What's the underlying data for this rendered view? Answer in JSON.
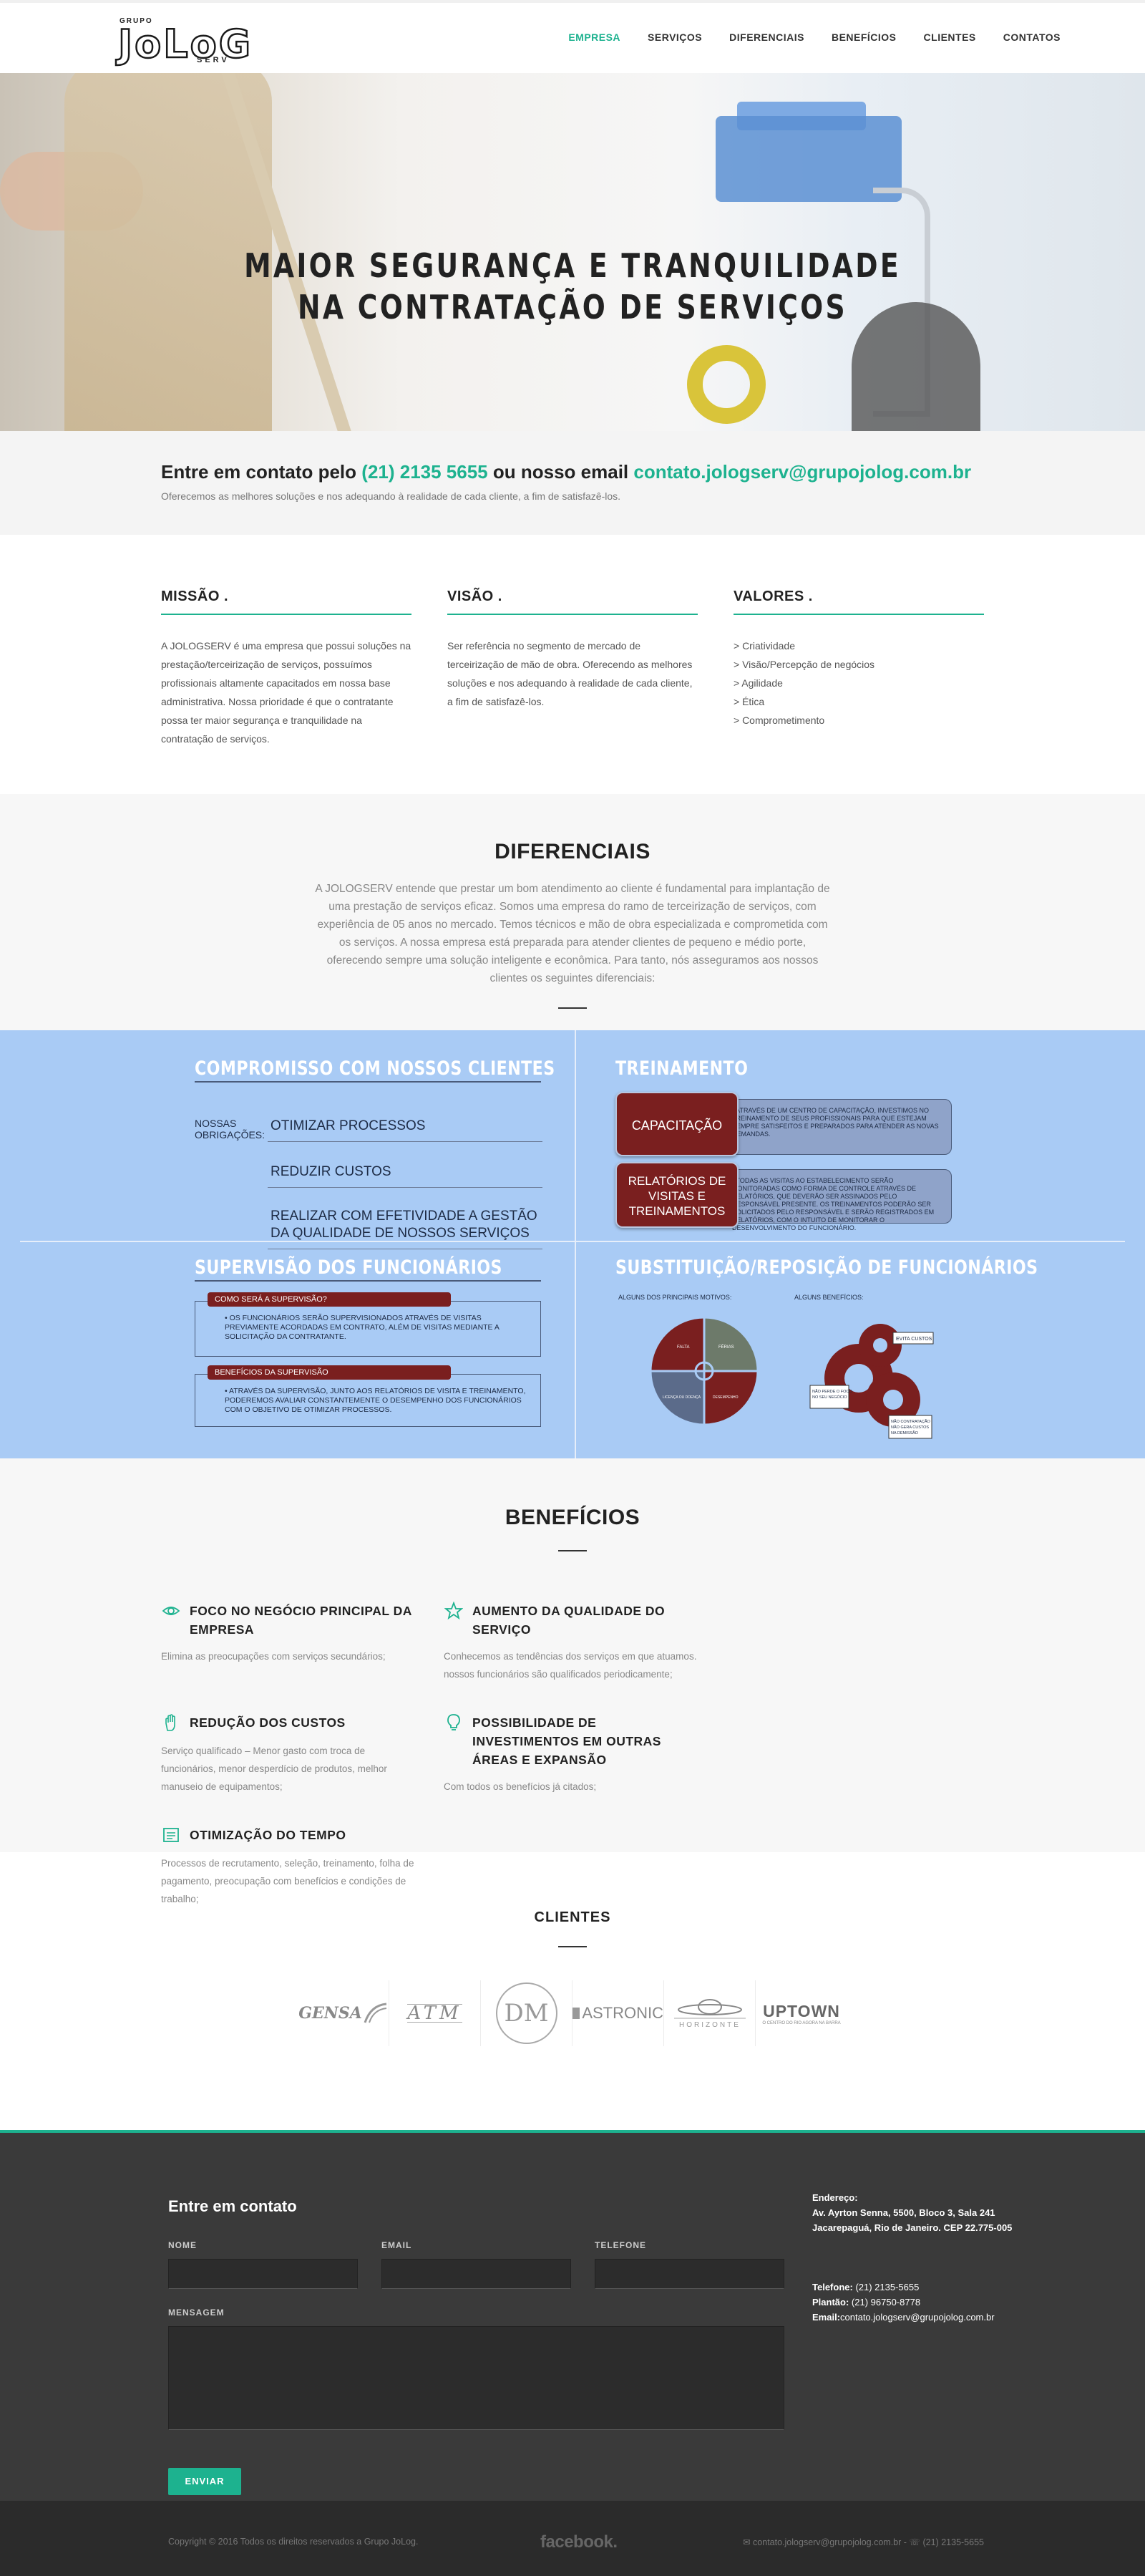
{
  "logo": {
    "grupo": "GRUPO",
    "main": "JoLoG",
    "serv": "SERV"
  },
  "nav": {
    "items": [
      "EMPRESA",
      "SERVIÇOS",
      "DIFERENCIAIS",
      "BENEFÍCIOS",
      "CLIENTES",
      "CONTATOS"
    ],
    "active": "EMPRESA"
  },
  "hero": {
    "line1": "MAIOR SEGURANÇA E TRANQUILIDADE",
    "line2": "NA CONTRATAÇÃO DE SERVIÇOS"
  },
  "contact": {
    "prefix": "Entre em contato pelo",
    "phone": "(21) 2135 5655",
    "middle": "ou nosso email",
    "email": "contato.jologserv@grupojolog.com.br",
    "sub": "Oferecemos as melhores soluções e nos adequando à realidade de cada cliente, a fim de satisfazê-los."
  },
  "mission": {
    "missao": {
      "title": "MISSÃO .",
      "text": "A JOLOGSERV é uma empresa que possui soluções na prestação/terceirização de serviços, possuímos profissionais altamente capacitados em nossa base administrativa. Nossa prioridade é que o contratante possa ter maior segurança e tranquilidade na contratação de serviços."
    },
    "visao": {
      "title": "VISÃO .",
      "text": "Ser referência no segmento de mercado de terceirização de mão de obra. Oferecendo as melhores soluções e nos adequando à realidade de cada cliente, a fim de satisfazê-los."
    },
    "valores": {
      "title": "VALORES .",
      "items": [
        "> Criatividade",
        "> Visão/Percepção de negócios",
        "> Agilidade",
        "> Ética",
        "> Comprometimento"
      ]
    }
  },
  "diferenciais": {
    "title": "DIFERENCIAIS",
    "text": "A JOLOGSERV entende que prestar um bom atendimento ao cliente é fundamental para implantação de uma prestação de serviços eficaz. Somos uma empresa do ramo de terceirização de serviços, com experiência de 05 anos no mercado. Temos técnicos e mão de obra especializada e comprometida com os serviços. A nossa empresa está preparada para atender clientes de pequeno e médio porte, oferecendo sempre uma solução inteligente e econômica. Para tanto, nós asseguramos aos nossos clientes os seguintes diferenciais:"
  },
  "info": {
    "p1": {
      "title": "COMPROMISSO COM NOSSOS CLIENTES",
      "nos": "NOSSAS\nOBRIGAÇÕES:",
      "items": [
        "OTIMIZAR PROCESSOS",
        "REDUZIR CUSTOS",
        "REALIZAR COM EFETIVIDADE A GESTÃO DA QUALIDADE DE NOSSOS SERVIÇOS"
      ]
    },
    "p2": {
      "title": "TREINAMENTO",
      "box1": "CAPACITAÇÃO",
      "box1_text": "• ATRAVÉS DE UM CENTRO DE CAPACITAÇÃO, INVESTIMOS NO TREINAMENTO DE SEUS PROFISSIONAIS PARA QUE ESTEJAM SEMPRE SATISFEITOS E PREPARADOS PARA ATENDER AS NOVAS DEMANDAS.",
      "box2": "RELATÓRIOS DE VISITAS E TREINAMENTOS",
      "box2_text": "• TODAS AS VISITAS AO ESTABELECIMENTO SERÃO MONITORADAS COMO FORMA DE CONTROLE ATRAVÉS DE RELATÓRIOS, QUE DEVERÃO SER ASSINADOS PELO RESPONSÁVEL PRESENTE. OS TREINAMENTOS PODERÃO SER SOLICITADOS PELO RESPONSÁVEL E SERÃO REGISTRADOS EM RELATÓRIOS, COM O INTUITO DE MONITORAR O DESENVOLVIMENTO DO FUNCIONÁRIO."
    },
    "p3": {
      "title": "SUPERVISÃO DOS FUNCIONÁRIOS",
      "tag1": "COMO SERÁ A SUPERVISÃO?",
      "text1": "• OS FUNCIONÁRIOS SERÃO SUPERVISIONADOS ATRAVÉS DE VISITAS PREVIAMENTE ACORDADAS EM CONTRATO, ALÉM DE VISITAS MEDIANTE A SOLICITAÇÃO DA CONTRATANTE.",
      "tag2": "BENEFÍCIOS DA SUPERVISÃO",
      "text2": "• ATRAVÉS DA SUPERVISÃO, JUNTO AOS RELATÓRIOS DE VISITA E TREINAMENTO, PODEREMOS AVALIAR CONSTANTEMENTE O DESEMPENHO DOS FUNCIONÁRIOS COM O OBJETIVO DE OTIMIZAR PROCESSOS."
    },
    "p4": {
      "title": "SUBSTITUIÇÃO/REPOSIÇÃO DE FUNCIONÁRIOS",
      "label1": "ALGUNS DOS PRINCIPAIS MOTIVOS:",
      "label2": "ALGUNS BENEFÍCIOS:",
      "pie": [
        "FALTA",
        "FÉRIAS",
        "LICENÇA OU DOENÇA",
        "DESEMPENHO"
      ],
      "gears": [
        "EVITA CUSTOS",
        "NÃO PERDE O FOCO NO SEU NEGÓCIO",
        "NÃO CONTRATAÇÃO NÃO GERA CUSTOS NA DEMISSÃO"
      ],
      "colors": {
        "pie_red": "#7a1f1f",
        "pie_grey": "#6d7a6a",
        "pie_blue": "#5b6b8a"
      }
    }
  },
  "beneficios": {
    "title": "BENEFÍCIOS",
    "items": [
      {
        "icon": "eye-icon",
        "title": "FOCO NO NEGÓCIO PRINCIPAL DA EMPRESA",
        "text": "Elimina as preocupações com serviços secundários;"
      },
      {
        "icon": "star-icon",
        "title": "AUMENTO DA QUALIDADE DO SERVIÇO",
        "text": "Conhecemos as tendências dos serviços em que atuamos. nossos funcionários são qualificados periodicamente;"
      },
      {
        "icon": "hand-icon",
        "title": "REDUÇÃO DOS CUSTOS",
        "text": "Serviço qualificado – Menor gasto com troca de funcionários, menor desperdício de produtos, melhor manuseio de equipamentos;"
      },
      {
        "icon": "lightbulb-icon",
        "title": "POSSIBILIDADE DE INVESTIMENTOS EM OUTRAS ÁREAS E EXPANSÃO",
        "text": "Com todos os benefícios já citados;"
      },
      {
        "icon": "document-icon",
        "title": "OTIMIZAÇÃO DO TEMPO",
        "text": "Processos de recrutamento, seleção, treinamento, folha de pagamento, preocupação com benefícios e condições de trabalho;"
      }
    ]
  },
  "clientes": {
    "title": "CLIENTES",
    "logos": [
      "GENSA",
      "ATM",
      "DM",
      "ASTRONIC",
      "HORIZONTE",
      "UPTOWN"
    ],
    "uptown_sub": "O CENTRO DO RIO AGORA NA BARRA"
  },
  "form": {
    "title": "Entre em contato",
    "nome": "NOME",
    "email": "EMAIL",
    "telefone": "TELEFONE",
    "mensagem": "MENSAGEM",
    "send": "ENVIAR",
    "address_label": "Endereço:",
    "address": "Av. Ayrton Senna, 5500, Bloco 3, Sala 241 Jacarepaguá, Rio de Janeiro. CEP 22.775-005",
    "tel_label": "Telefone:",
    "tel": "(21) 2135-5655",
    "plantao_label": "Plantão:",
    "plantao": "(21) 96750-8778",
    "email_label": "Email:",
    "email_value": "contato.jologserv@grupojolog.com.br"
  },
  "footer": {
    "copy": "Copyright © 2016 Todos os direitos reservados a Grupo JoLog.",
    "facebook": "facebook.",
    "contact": "✉ contato.jologserv@grupojolog.com.br - ☏ (21) 2135-5655"
  }
}
